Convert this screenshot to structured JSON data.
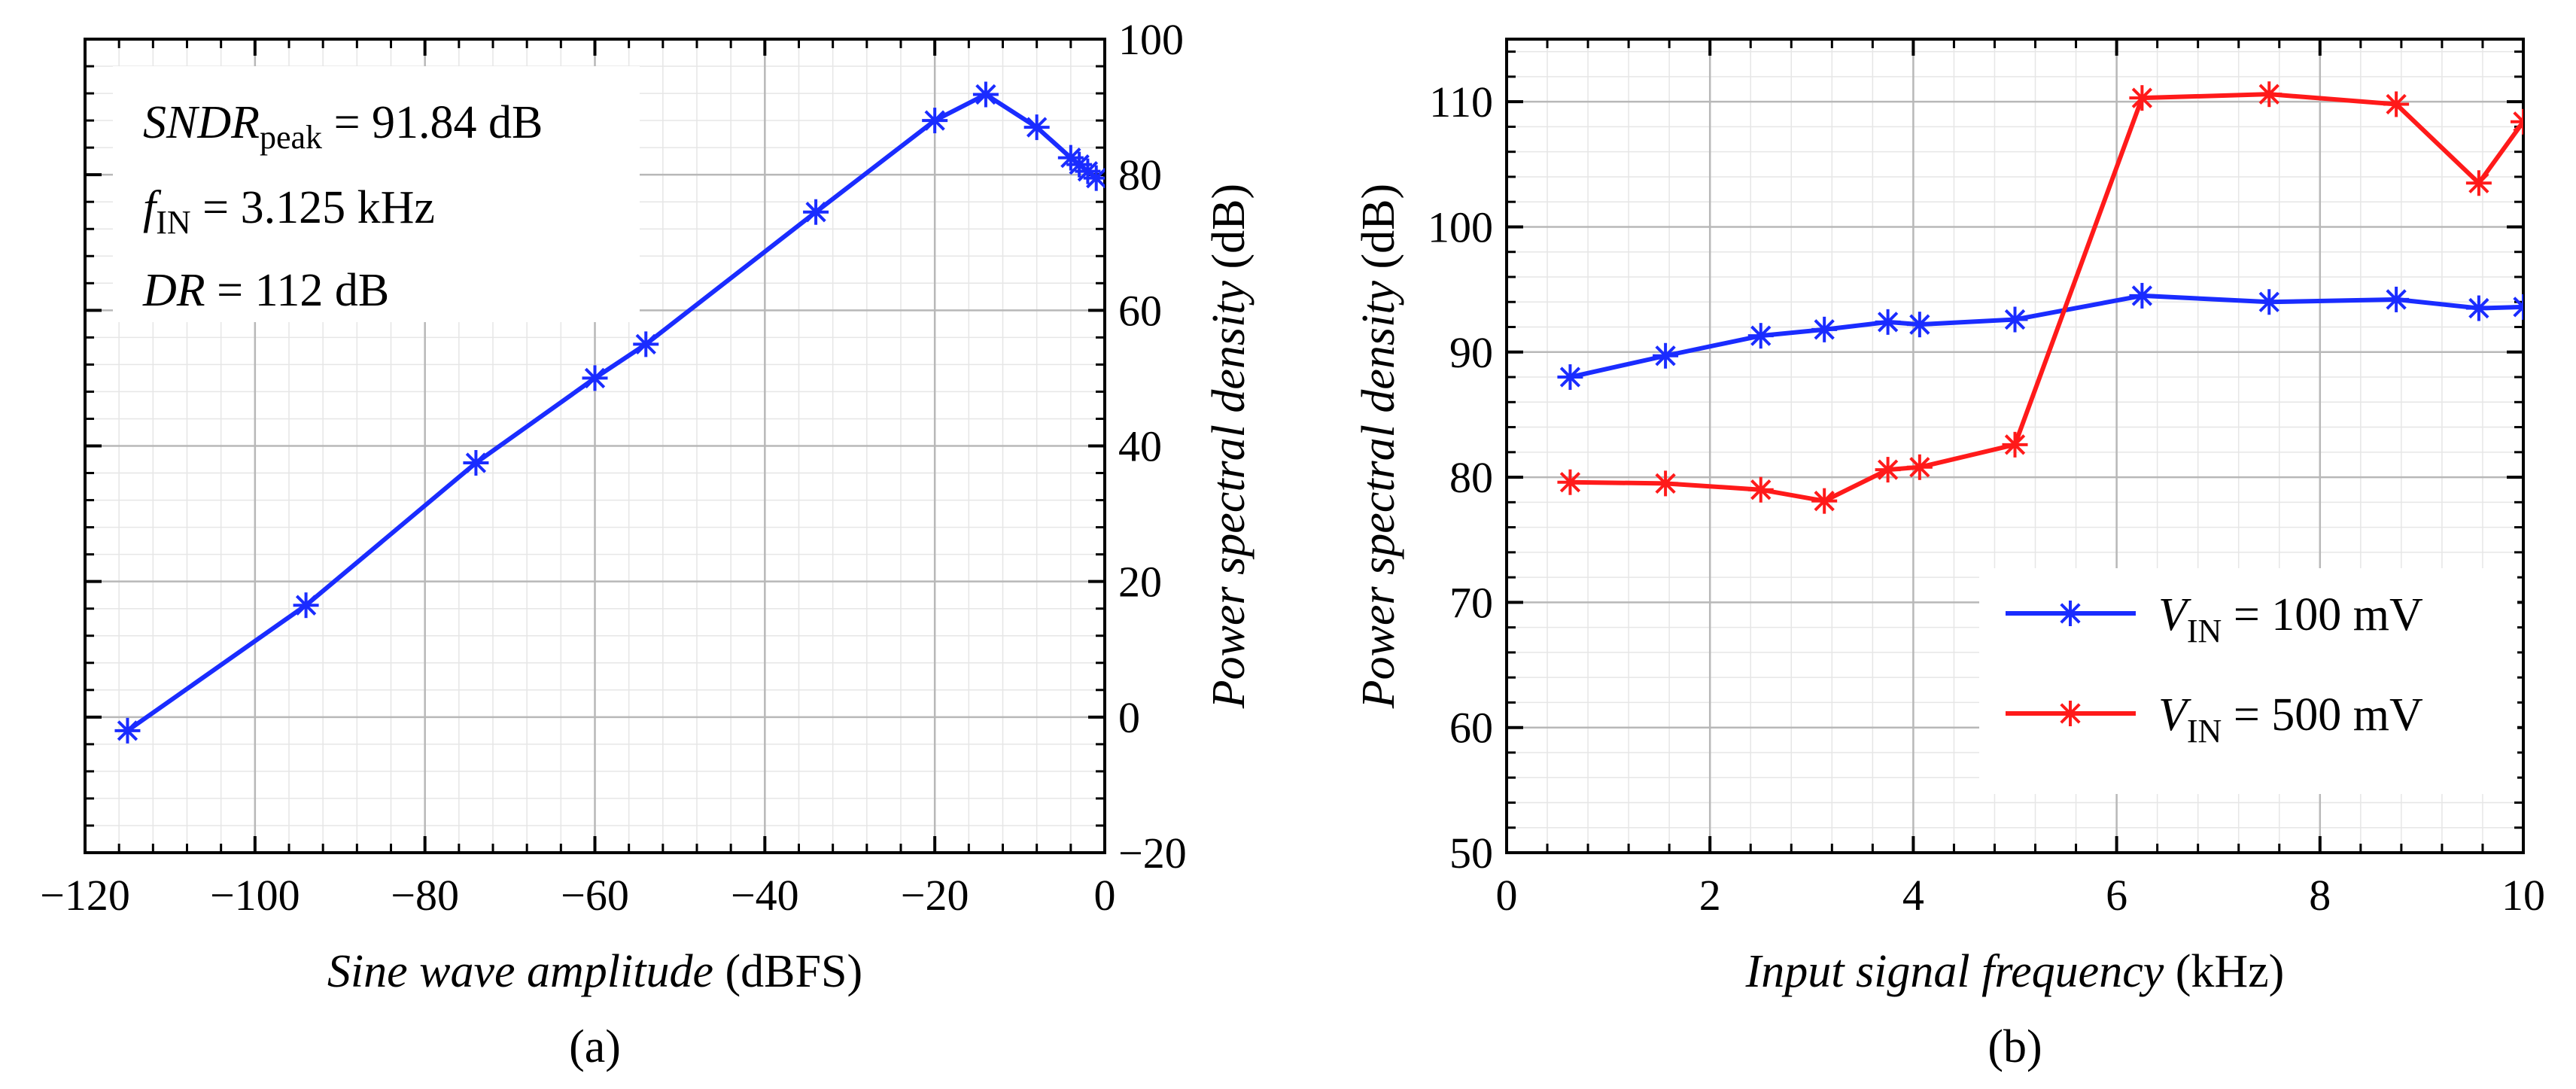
{
  "chart_data": [
    {
      "type": "line",
      "panel": "a",
      "caption": "(a)",
      "xlabel_italic": "Sine wave amplitude",
      "xlabel_unit": "(dBFS)",
      "ylabel_italic": "Power spectral density",
      "ylabel_unit": "(dB)",
      "yaxis_side": "right",
      "xlim": [
        -120,
        0
      ],
      "ylim": [
        -20,
        100
      ],
      "xticks": [
        -120,
        -100,
        -80,
        -60,
        -40,
        -20,
        0
      ],
      "yticks": [
        -20,
        0,
        20,
        40,
        60,
        80,
        100
      ],
      "xtick_labels": [
        "−120",
        "−100",
        "−80",
        "−60",
        "−40",
        "−20",
        "0"
      ],
      "ytick_labels": [
        "−20",
        "0",
        "20",
        "40",
        "60",
        "80",
        "100"
      ],
      "grid": true,
      "series": [
        {
          "name": "SNDR",
          "color": "#1a2cff",
          "marker": "asterisk",
          "x": [
            -115,
            -94,
            -74,
            -60,
            -54,
            -34,
            -20,
            -14,
            -8,
            -4,
            -3,
            -2,
            -1
          ],
          "y": [
            -2,
            16.5,
            37.5,
            50,
            55,
            74.5,
            88,
            91.84,
            87,
            82.5,
            81.5,
            80.5,
            79.5
          ]
        }
      ],
      "annotations": [
        {
          "var": "SNDR",
          "sub": "peak",
          "rest": " = 91.84 dB"
        },
        {
          "var": "f",
          "sub": "IN",
          "rest": " = 3.125 kHz"
        },
        {
          "var": "DR",
          "sub": "",
          "rest": " = 112 dB"
        }
      ]
    },
    {
      "type": "line",
      "panel": "b",
      "caption": "(b)",
      "xlabel_italic": "Input signal frequency",
      "xlabel_unit": "(kHz)",
      "ylabel_italic": "Power spectral density",
      "ylabel_unit": "(dB)",
      "yaxis_side": "left",
      "xlim": [
        0,
        10
      ],
      "ylim": [
        50,
        115
      ],
      "xticks": [
        0,
        2,
        4,
        6,
        8,
        10
      ],
      "yticks": [
        50,
        60,
        70,
        80,
        90,
        100,
        110
      ],
      "xtick_labels": [
        "0",
        "2",
        "4",
        "6",
        "8",
        "10"
      ],
      "ytick_labels": [
        "50",
        "60",
        "70",
        "80",
        "90",
        "100",
        "110"
      ],
      "grid": true,
      "legend_position": "bottom-right",
      "series": [
        {
          "name": "V_IN = 100 mV",
          "legend_var": "V",
          "legend_sub": "IN",
          "legend_rest": " = 100 mV",
          "color": "#1a2cff",
          "marker": "asterisk",
          "x": [
            0.625,
            1.5625,
            2.5,
            3.125,
            3.75,
            4.0625,
            5.0,
            6.25,
            7.5,
            8.75,
            9.5625,
            10.0
          ],
          "y": [
            88.0,
            89.7,
            91.3,
            91.8,
            92.4,
            92.2,
            92.6,
            94.5,
            94.0,
            94.2,
            93.5,
            93.6
          ]
        },
        {
          "name": "V_IN = 500 mV",
          "legend_var": "V",
          "legend_sub": "IN",
          "legend_rest": " = 500 mV",
          "color": "#ff1a1a",
          "marker": "asterisk",
          "x": [
            0.625,
            1.5625,
            2.5,
            3.125,
            3.75,
            4.0625,
            5.0,
            6.25,
            7.5,
            8.75,
            9.5625,
            10.0
          ],
          "y": [
            79.6,
            79.5,
            79.0,
            78.1,
            80.6,
            80.8,
            82.6,
            110.3,
            110.6,
            109.8,
            103.5,
            108.4
          ]
        }
      ]
    }
  ]
}
